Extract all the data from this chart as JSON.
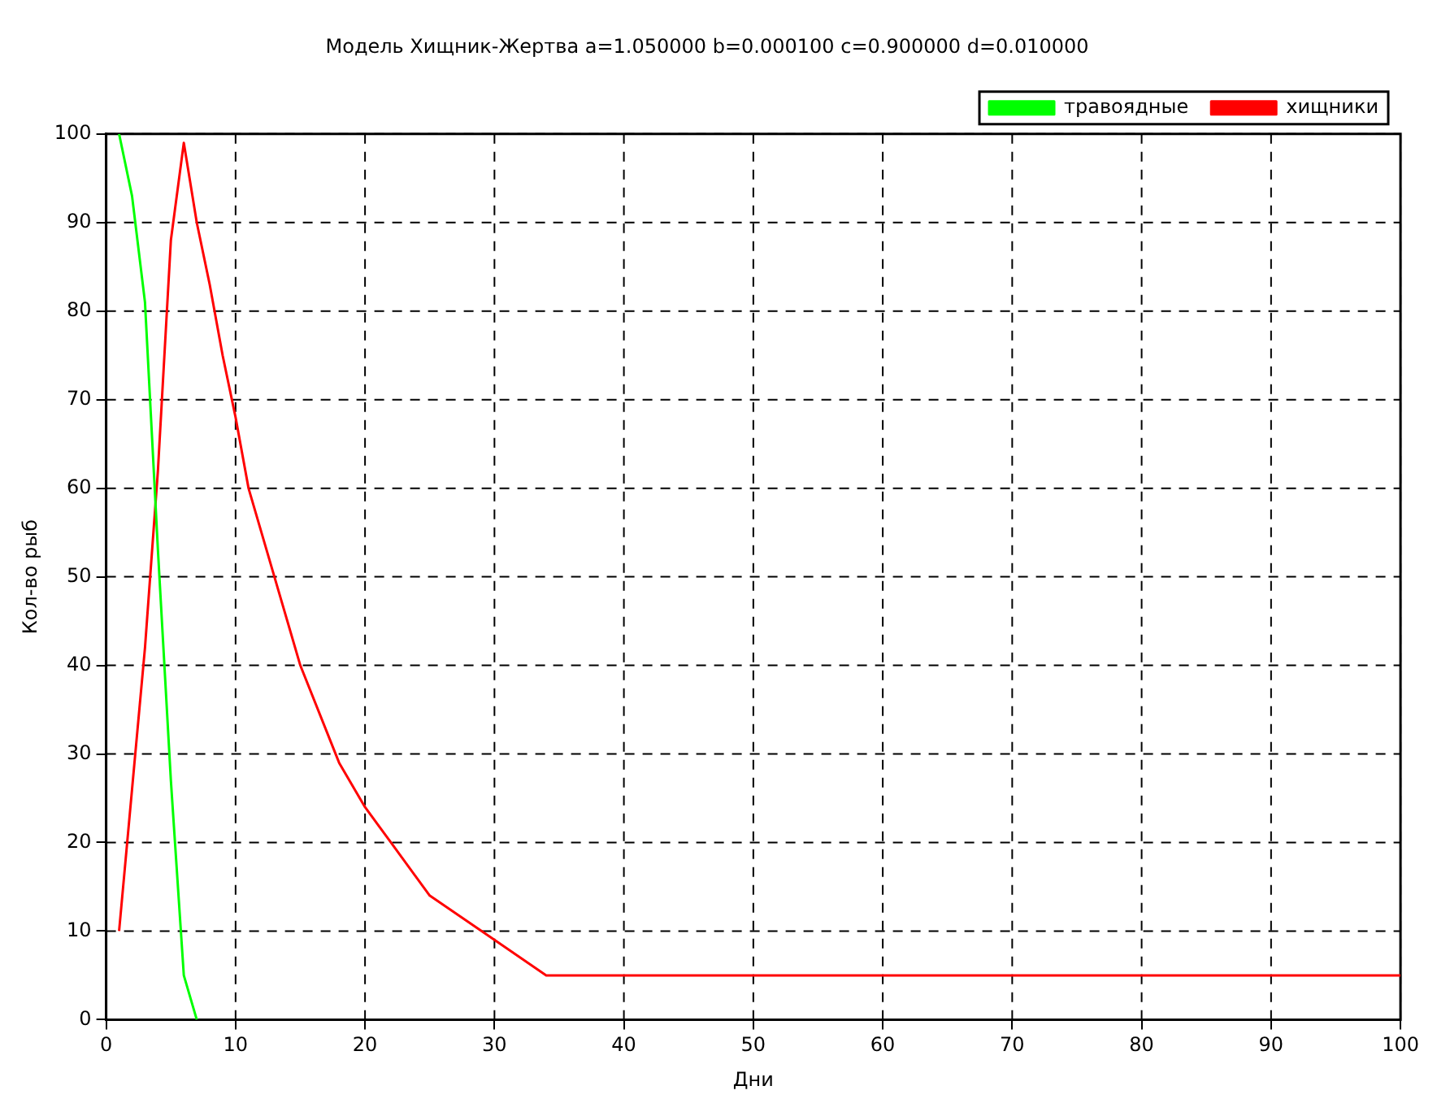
{
  "chart_data": {
    "type": "line",
    "title": "Модель Хищник-Жертва a=1.050000 b=0.000100 c=0.900000 d=0.010000",
    "xlabel": "Дни",
    "ylabel": "Кол-во рыб",
    "series": [
      {
        "name": "травоядные",
        "color": "#00ff00",
        "x": [
          1,
          2,
          3,
          4,
          5,
          6,
          7
        ],
        "values": [
          100,
          93,
          81,
          53,
          27,
          5,
          0
        ]
      },
      {
        "name": "хищники",
        "color": "#ff0000",
        "x": [
          1,
          2,
          3,
          4,
          5,
          6,
          7,
          8,
          9,
          10,
          11,
          13,
          15,
          18,
          20,
          22,
          25,
          30,
          34,
          100
        ],
        "values": [
          10,
          26,
          42,
          62,
          88,
          99,
          90,
          83,
          75,
          68,
          60,
          50,
          40,
          29,
          24,
          20,
          14,
          9,
          5,
          5
        ]
      }
    ],
    "xlim": [
      0,
      100
    ],
    "xticks": [
      0,
      10,
      20,
      30,
      40,
      50,
      60,
      70,
      80,
      90,
      100
    ],
    "ylim": [
      0,
      100
    ],
    "yticks": [
      0,
      10,
      20,
      30,
      40,
      50,
      60,
      70,
      80,
      90,
      100
    ],
    "grid": true,
    "legend": "top right",
    "marker": "none",
    "line_style": "solid"
  }
}
